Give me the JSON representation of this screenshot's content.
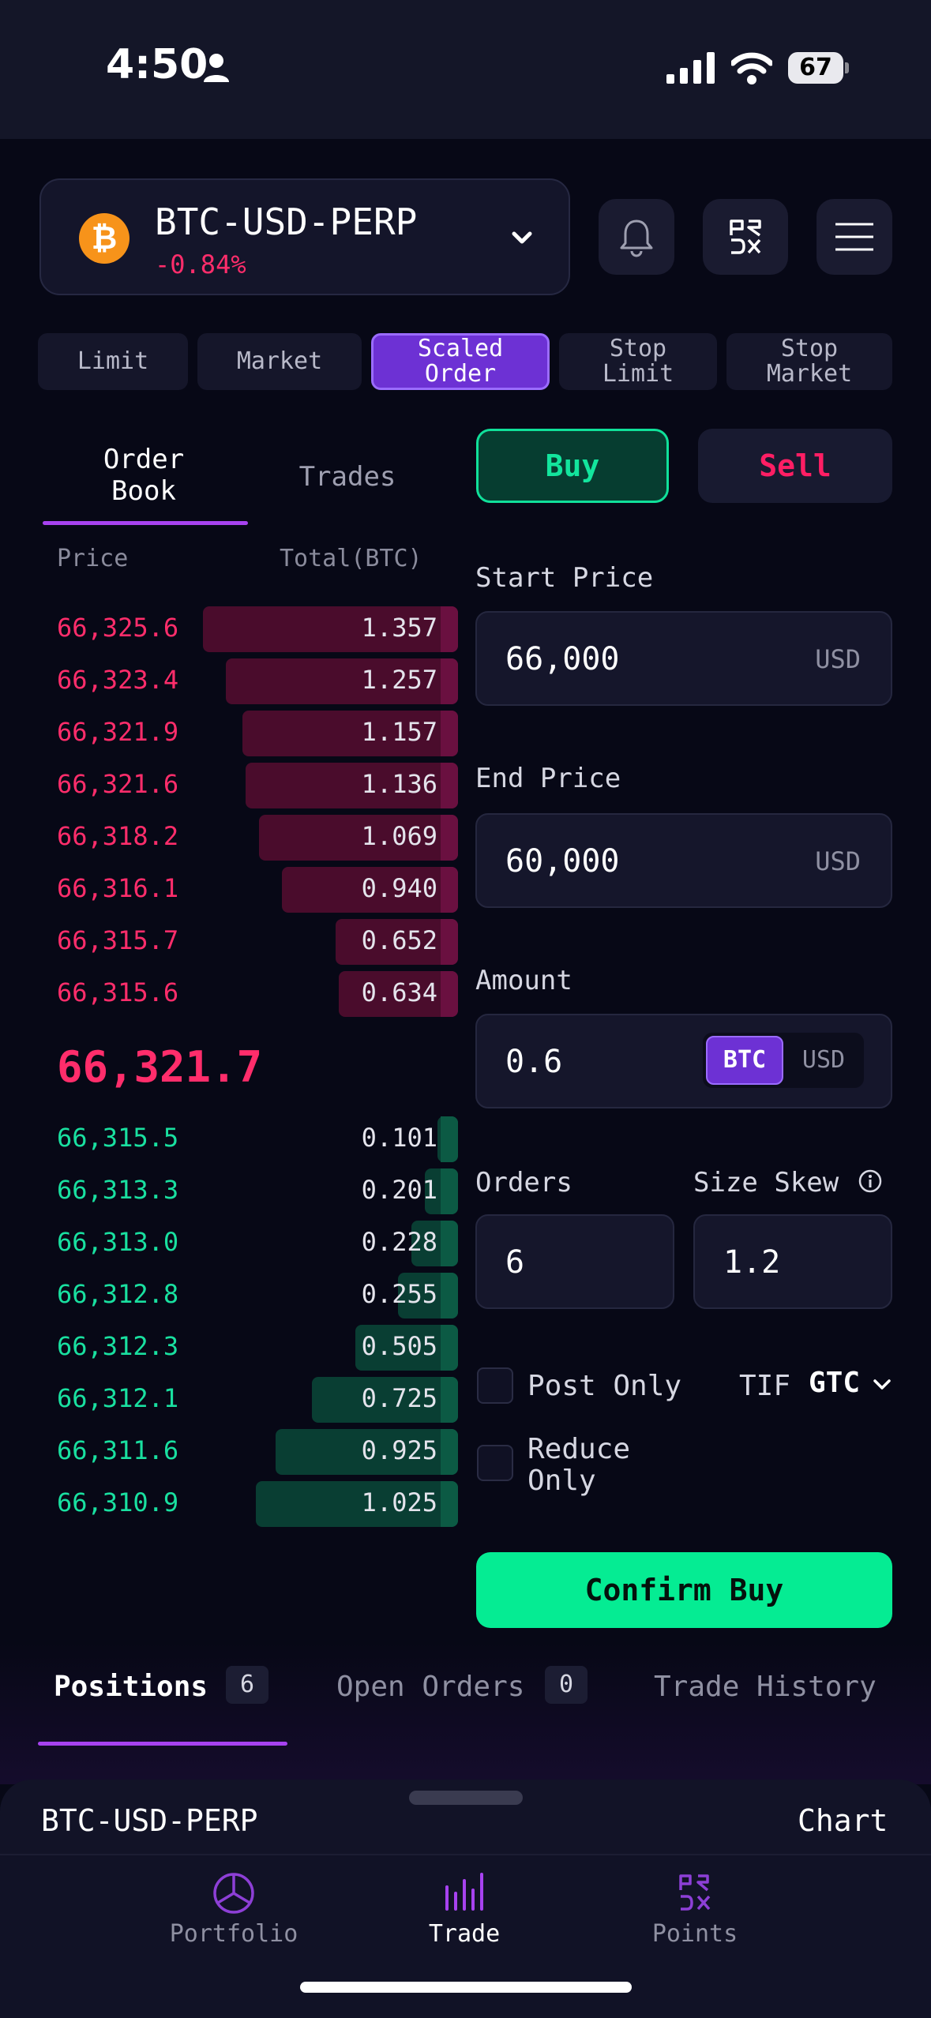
{
  "status_bar": {
    "time": "4:50",
    "battery": "67"
  },
  "market": {
    "name": "BTC-USD-PERP",
    "change": "-0.84%",
    "logo_glyph": "₿"
  },
  "header_icons": [
    "bell-icon",
    "prdx-logo-icon",
    "hamburger-menu-icon"
  ],
  "order_types": [
    "Limit",
    "Market",
    "Scaled\nOrder",
    "Stop\nLimit",
    "Stop\nMarket"
  ],
  "active_order_type": "Scaled\nOrder",
  "book_tabs": {
    "order_book": "Order\nBook",
    "trades": "Trades"
  },
  "side": {
    "buy": "Buy",
    "sell": "Sell"
  },
  "order_book": {
    "price_header": "Price",
    "total_header": "Total(BTC)",
    "asks": [
      {
        "price": "66,325.6",
        "total": "1.357",
        "depth": 0.77
      },
      {
        "price": "66,323.4",
        "total": "1.257",
        "depth": 0.7
      },
      {
        "price": "66,321.9",
        "total": "1.157",
        "depth": 0.65
      },
      {
        "price": "66,321.6",
        "total": "1.136",
        "depth": 0.64
      },
      {
        "price": "66,318.2",
        "total": "1.069",
        "depth": 0.6
      },
      {
        "price": "66,316.1",
        "total": "0.940",
        "depth": 0.53
      },
      {
        "price": "66,315.7",
        "total": "0.652",
        "depth": 0.37
      },
      {
        "price": "66,315.6",
        "total": "0.634",
        "depth": 0.36
      }
    ],
    "mid_price": "66,321.7",
    "bids": [
      {
        "price": "66,315.5",
        "total": "0.101",
        "depth": 0.06
      },
      {
        "price": "66,313.3",
        "total": "0.201",
        "depth": 0.1
      },
      {
        "price": "66,313.0",
        "total": "0.228",
        "depth": 0.14
      },
      {
        "price": "66,312.8",
        "total": "0.255",
        "depth": 0.18
      },
      {
        "price": "66,312.3",
        "total": "0.505",
        "depth": 0.31
      },
      {
        "price": "66,312.1",
        "total": "0.725",
        "depth": 0.44
      },
      {
        "price": "66,311.6",
        "total": "0.925",
        "depth": 0.55
      },
      {
        "price": "66,310.9",
        "total": "1.025",
        "depth": 0.61
      }
    ]
  },
  "form": {
    "start_price": {
      "label": "Start Price",
      "value": "66,000",
      "unit": "USD"
    },
    "end_price": {
      "label": "End Price",
      "value": "60,000",
      "unit": "USD"
    },
    "amount": {
      "label": "Amount",
      "value": "0.6",
      "unit_options": [
        "BTC",
        "USD"
      ],
      "selected_unit": "BTC"
    },
    "orders": {
      "label": "Orders",
      "value": "6"
    },
    "size_skew": {
      "label": "Size Skew",
      "value": "1.2"
    },
    "post_only": "Post Only",
    "reduce_only": "Reduce\nOnly",
    "tif_label": "TIF",
    "tif_value": "GTC",
    "confirm": "Confirm Buy"
  },
  "bottom_tabs": [
    {
      "label": "Positions",
      "count": "6"
    },
    {
      "label": "Open Orders",
      "count": "0"
    },
    {
      "label": "Trade History"
    }
  ],
  "sheet": {
    "market": "BTC-USD-PERP",
    "chart": "Chart"
  },
  "nav": [
    {
      "label": "Portfolio",
      "icon": "pie-chart-icon"
    },
    {
      "label": "Trade",
      "icon": "bars-icon"
    },
    {
      "label": "Points",
      "icon": "prdx-logo-icon"
    }
  ],
  "colors": {
    "accent": "#6d31d4",
    "buy": "#05ec93",
    "sell": "#ff2d6b"
  }
}
